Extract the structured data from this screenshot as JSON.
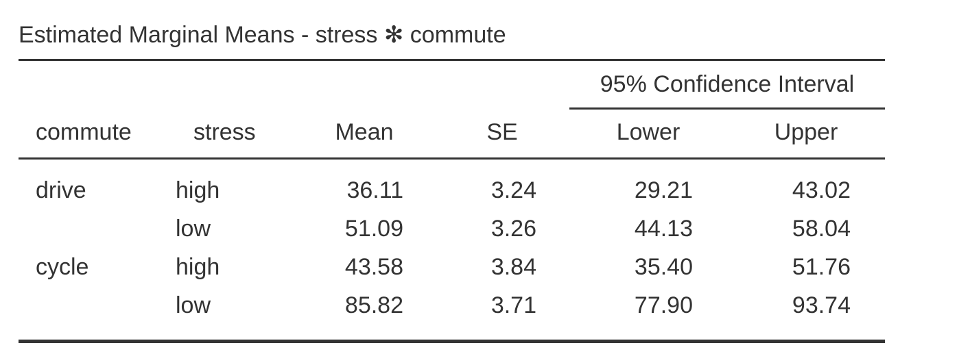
{
  "table": {
    "title": "Estimated Marginal Means - stress ✻ commute",
    "ci_header": "95% Confidence Interval",
    "headers": {
      "commute": "commute",
      "stress": "stress",
      "mean": "Mean",
      "se": "SE",
      "lower": "Lower",
      "upper": "Upper"
    },
    "rows": [
      {
        "commute": "drive",
        "stress": "high",
        "mean": "36.11",
        "se": "3.24",
        "lower": "29.21",
        "upper": "43.02"
      },
      {
        "commute": "",
        "stress": "low",
        "mean": "51.09",
        "se": "3.26",
        "lower": "44.13",
        "upper": "58.04"
      },
      {
        "commute": "cycle",
        "stress": "high",
        "mean": "43.58",
        "se": "3.84",
        "lower": "35.40",
        "upper": "51.76"
      },
      {
        "commute": "",
        "stress": "low",
        "mean": "85.82",
        "se": "3.71",
        "lower": "77.90",
        "upper": "93.74"
      }
    ]
  }
}
